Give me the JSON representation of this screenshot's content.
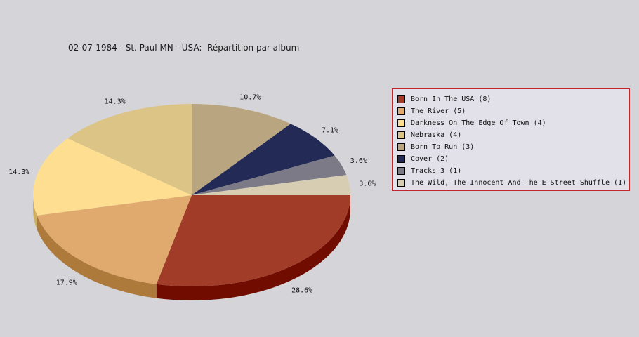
{
  "chart_data": {
    "type": "pie",
    "title": "02-07-1984 - St. Paul MN - USA:  Répartition par album",
    "slices": [
      {
        "label": "Born In The USA (8)",
        "value": 8,
        "percent_label": "28.6%",
        "color": "#a03c28",
        "side_color": "#700c00"
      },
      {
        "label": "The River (5)",
        "value": 5,
        "percent_label": "17.9%",
        "color": "#e0aa6e",
        "side_color": "#ae7a3c"
      },
      {
        "label": "Darkness On The Edge Of Town (4)",
        "value": 4,
        "percent_label": "14.3%",
        "color": "#fedf91",
        "side_color": "#ceaf60"
      },
      {
        "label": "Nebraska (4)",
        "value": 4,
        "percent_label": "14.3%",
        "color": "#dcc486",
        "side_color": "#ac9456"
      },
      {
        "label": "Born To Run (3)",
        "value": 3,
        "percent_label": "10.7%",
        "color": "#b9a57f",
        "side_color": "#89754f"
      },
      {
        "label": "Cover (2)",
        "value": 2,
        "percent_label": "7.1%",
        "color": "#232a55",
        "side_color": "#0a0f30"
      },
      {
        "label": "Tracks 3 (1)",
        "value": 1,
        "percent_label": "3.6%",
        "color": "#7b7a86",
        "side_color": "#4b4a56"
      },
      {
        "label": "The Wild, The Innocent And The E Street Shuffle (1)",
        "value": 1,
        "percent_label": "3.6%",
        "color": "#d7cdb2",
        "side_color": "#a79d82"
      }
    ],
    "legend_position": "right"
  }
}
